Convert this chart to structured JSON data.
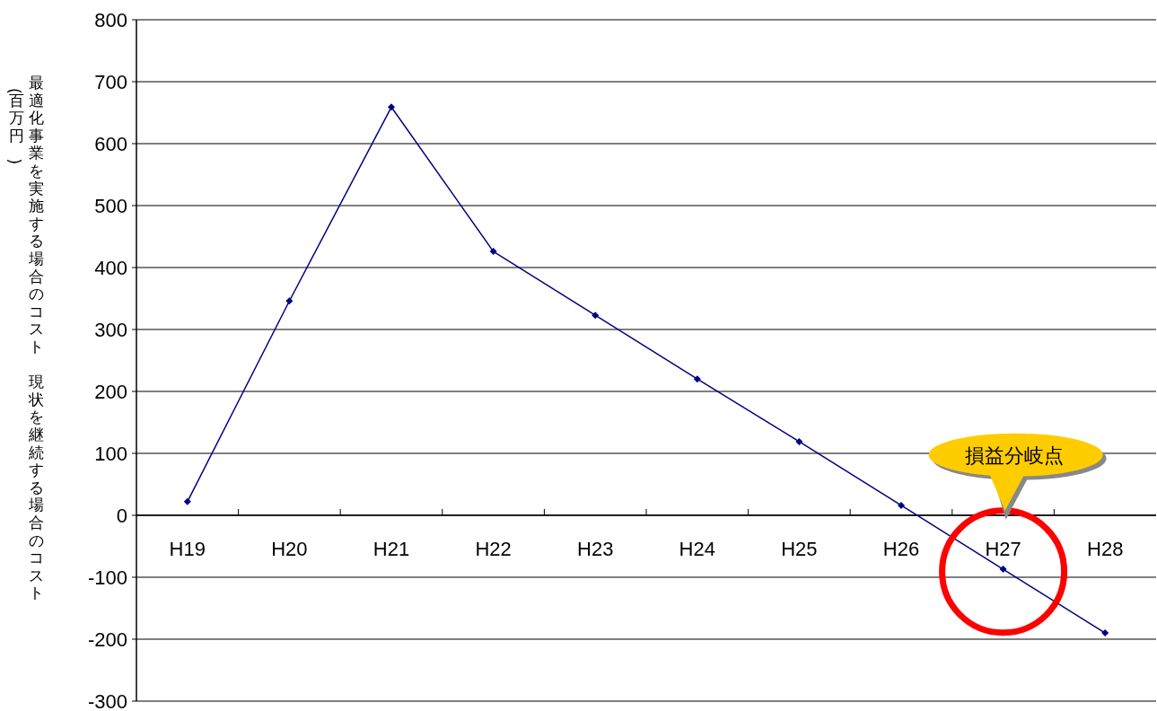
{
  "chart_data": {
    "type": "line",
    "ylabel": "最適化事業を実施する場合のコスト　現状を継続する場合のコスト　(百万円)",
    "categories": [
      "H19",
      "H20",
      "H21",
      "H22",
      "H23",
      "H24",
      "H25",
      "H26",
      "H27",
      "H28"
    ],
    "series": [
      {
        "color": "#000080",
        "values": [
          22,
          346,
          659,
          426,
          323,
          220,
          119,
          16,
          -87,
          -190
        ]
      }
    ],
    "ylim": [
      -300,
      800
    ],
    "yticks": [
      -300,
      -200,
      -100,
      0,
      100,
      200,
      300,
      400,
      500,
      600,
      700,
      800
    ],
    "grid": "y",
    "marker": "diamond",
    "line_style": "solid",
    "annotations": [
      "損益分岐点"
    ]
  }
}
